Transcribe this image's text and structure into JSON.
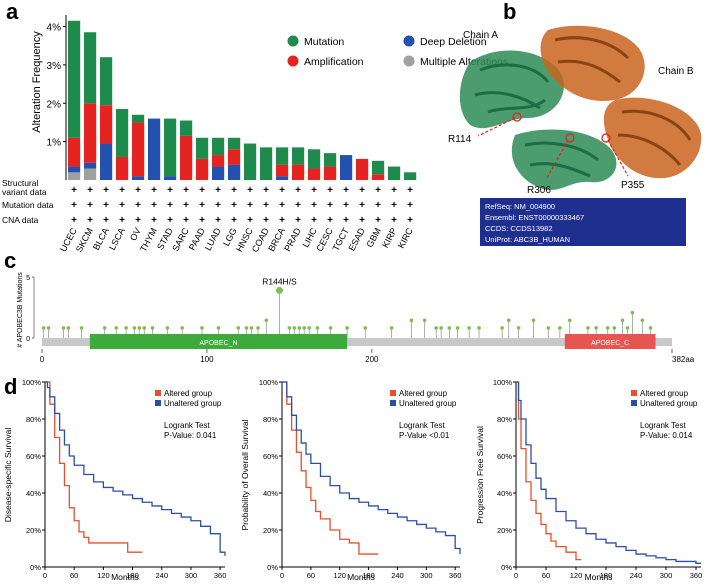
{
  "panels": {
    "a": "a",
    "b": "b",
    "c": "c",
    "d": "d"
  },
  "structure": {
    "chain_a": "Chain A",
    "chain_b": "Chain B",
    "residues": [
      "R114",
      "R306",
      "P355"
    ],
    "info": [
      "RefSeq: NM_004900",
      "Ensembl: ENST00000333467",
      "CCDS: CCDS13982",
      "UniProt: ABC3B_HUMAN"
    ],
    "colors": {
      "chain_a": "#2e8b57",
      "chain_b": "#c9641e",
      "box": "#1f2f8f"
    }
  },
  "chart_data": [
    {
      "type": "bar",
      "title": "",
      "ylabel": "Alteration Frequency",
      "ylim": [
        0,
        4.3
      ],
      "yticks": [
        "1%",
        "2%",
        "3%",
        "4%"
      ],
      "categories": [
        "UCEC",
        "SKCM",
        "BLCA",
        "LSCA",
        "OV",
        "THYM",
        "STAD",
        "SARC",
        "PAAD",
        "LUAD",
        "LGG",
        "HNSC",
        "COAD",
        "BRCA",
        "PRAD",
        "LIHC",
        "CESC",
        "TGCT",
        "ESAD",
        "GBM",
        "KIRP",
        "KIRC"
      ],
      "series": [
        {
          "name": "Multiple Alterations",
          "color": "#a0a0a0",
          "values": [
            0.2,
            0.3,
            0,
            0,
            0,
            0,
            0,
            0,
            0,
            0,
            0,
            0,
            0,
            0,
            0,
            0,
            0,
            0,
            0,
            0,
            0,
            0
          ]
        },
        {
          "name": "Deep Deletion",
          "color": "#2451b0",
          "values": [
            0.15,
            0.15,
            0.95,
            0,
            0.1,
            1.6,
            0.1,
            0,
            0,
            0.35,
            0.4,
            0,
            0,
            0.1,
            0,
            0,
            0,
            0.65,
            0,
            0,
            0,
            0
          ]
        },
        {
          "name": "Amplification",
          "color": "#e52321",
          "values": [
            0.75,
            1.55,
            1.0,
            0.6,
            1.4,
            0,
            0,
            1.15,
            0.55,
            0.3,
            0.4,
            0,
            0,
            0.3,
            0.4,
            0.3,
            0.35,
            0,
            0.55,
            0.15,
            0,
            0
          ]
        },
        {
          "name": "Mutation",
          "color": "#1e8a4c",
          "values": [
            3.05,
            1.85,
            1.25,
            1.25,
            0.2,
            0,
            1.5,
            0.4,
            0.55,
            0.45,
            0.3,
            0.95,
            0.85,
            0.45,
            0.45,
            0.5,
            0.35,
            0,
            0,
            0.35,
            0.35,
            0.2
          ]
        }
      ],
      "legend": [
        {
          "name": "Mutation",
          "color": "#1e8a4c"
        },
        {
          "name": "Deep Deletion",
          "color": "#2451b0"
        },
        {
          "name": "Amplification",
          "color": "#e52321"
        },
        {
          "name": "Multiple Alterations",
          "color": "#a0a0a0"
        }
      ],
      "row_labels": [
        "Structural variant data",
        "Mutation data",
        "CNA data"
      ],
      "row_labels_split": [
        [
          "Structural",
          "variant data"
        ],
        [
          "Mutation data"
        ],
        [
          "CNA data"
        ]
      ],
      "row_marker": "+"
    },
    {
      "type": "scatter",
      "ylabel": "# APOBEC3B Mutations",
      "ylim": [
        0,
        5
      ],
      "yticks": [
        "0",
        "5"
      ],
      "xlim": [
        0,
        382
      ],
      "xticks": [
        "0",
        "100",
        "200",
        "382aa"
      ],
      "xtick_values": [
        0,
        100,
        200,
        382
      ],
      "highlight": {
        "label": "R144H/S",
        "position": 144,
        "count": 3
      },
      "positions": [
        1,
        4,
        13,
        16,
        24,
        38,
        45,
        51,
        56,
        59,
        62,
        67,
        76,
        85,
        97,
        107,
        119,
        124,
        127,
        131,
        136,
        150,
        153,
        156,
        159,
        162,
        167,
        175,
        185,
        196,
        212,
        224,
        232,
        239,
        242,
        247,
        252,
        259,
        265,
        279,
        283,
        289,
        298,
        307,
        314,
        320,
        331,
        336,
        343,
        347,
        352,
        355,
        358,
        364,
        369
      ],
      "counts": [
        1,
        1,
        1,
        1,
        1,
        1,
        1,
        1,
        1,
        1,
        1,
        1,
        1,
        1,
        1,
        1,
        1,
        1,
        1,
        1,
        2,
        1,
        1,
        1,
        1,
        1,
        1,
        1,
        1,
        1,
        1,
        2,
        2,
        1,
        1,
        1,
        1,
        1,
        1,
        1,
        2,
        1,
        2,
        1,
        1,
        2,
        1,
        1,
        1,
        1,
        2,
        1,
        3,
        2,
        1
      ],
      "domains": [
        {
          "name": "APOBEC_N",
          "start": 29,
          "end": 185,
          "color": "#3daa3b"
        },
        {
          "name": "APOBEC_C",
          "start": 317,
          "end": 372,
          "color": "#e85450"
        }
      ]
    },
    {
      "type": "line",
      "ylabel": "Disease-specific Survival",
      "xlabel": "Months",
      "xlim": [
        0,
        370
      ],
      "ylim": [
        0,
        100
      ],
      "xticks": [
        "0",
        "60",
        "120",
        "180",
        "240",
        "300",
        "360"
      ],
      "xtick_values": [
        0,
        60,
        120,
        180,
        240,
        300,
        360
      ],
      "yticks": [
        "0%",
        "20%",
        "40%",
        "60%",
        "80%",
        "100%"
      ],
      "legend": [
        "Altered group",
        "Unaltered group"
      ],
      "stat_title": "Logrank Test",
      "p_value": "P-Value: 0.041",
      "series": [
        {
          "name": "Altered group",
          "color": "#e8502a",
          "x": [
            0,
            10,
            20,
            30,
            40,
            50,
            60,
            70,
            80,
            90,
            110,
            130,
            150,
            170,
            200
          ],
          "y": [
            100,
            88,
            70,
            56,
            44,
            32,
            25,
            19,
            16,
            13,
            13,
            13,
            13,
            8,
            8
          ]
        },
        {
          "name": "Unaltered group",
          "color": "#2b4fa8",
          "x": [
            0,
            5,
            10,
            20,
            30,
            40,
            50,
            60,
            80,
            100,
            120,
            140,
            160,
            180,
            200,
            220,
            240,
            260,
            280,
            300,
            320,
            340,
            360,
            370
          ],
          "y": [
            100,
            97,
            92,
            83,
            74,
            66,
            60,
            55,
            50,
            46,
            43,
            41,
            39,
            37,
            35,
            33,
            31,
            29,
            27,
            25,
            22,
            18,
            8,
            6
          ]
        }
      ]
    },
    {
      "type": "line",
      "ylabel": "Probability of Overall Survival",
      "xlabel": "Months",
      "xlim": [
        0,
        370
      ],
      "ylim": [
        0,
        100
      ],
      "xticks": [
        "0",
        "60",
        "120",
        "180",
        "240",
        "300",
        "360"
      ],
      "xtick_values": [
        0,
        60,
        120,
        180,
        240,
        300,
        360
      ],
      "yticks": [
        "0%",
        "20%",
        "40%",
        "60%",
        "80%",
        "100%"
      ],
      "legend": [
        "Altered group",
        "Unaltered group"
      ],
      "stat_title": "Logrank Test",
      "p_value": "P-Value <0.01",
      "series": [
        {
          "name": "Altered group",
          "color": "#e8502a",
          "x": [
            0,
            10,
            20,
            30,
            40,
            50,
            60,
            70,
            80,
            100,
            120,
            140,
            160,
            180,
            200
          ],
          "y": [
            100,
            88,
            74,
            62,
            52,
            43,
            36,
            30,
            26,
            20,
            15,
            13,
            7,
            7,
            7
          ]
        },
        {
          "name": "Unaltered group",
          "color": "#2b4fa8",
          "x": [
            0,
            10,
            20,
            30,
            40,
            50,
            60,
            80,
            100,
            120,
            140,
            160,
            180,
            200,
            220,
            240,
            260,
            280,
            300,
            320,
            340,
            360,
            370
          ],
          "y": [
            100,
            92,
            82,
            74,
            67,
            61,
            56,
            49,
            44,
            40,
            37,
            35,
            33,
            31,
            29,
            27,
            25,
            23,
            21,
            19,
            17,
            10,
            7
          ]
        }
      ]
    },
    {
      "type": "line",
      "ylabel": "Progression Free Survival",
      "xlabel": "Months",
      "xlim": [
        0,
        370
      ],
      "ylim": [
        0,
        100
      ],
      "xticks": [
        "0",
        "60",
        "120",
        "180",
        "240",
        "300",
        "360"
      ],
      "xtick_values": [
        0,
        60,
        120,
        180,
        240,
        300,
        360
      ],
      "yticks": [
        "0%",
        "20%",
        "40%",
        "60%",
        "80%",
        "100%"
      ],
      "legend": [
        "Altered group",
        "Unaltered group"
      ],
      "stat_title": "Logrank Test",
      "p_value": "P-Value: 0.014",
      "series": [
        {
          "name": "Altered group",
          "color": "#e8502a",
          "x": [
            0,
            5,
            10,
            20,
            30,
            40,
            50,
            60,
            70,
            80,
            100,
            120,
            130
          ],
          "y": [
            100,
            80,
            64,
            46,
            36,
            29,
            23,
            18,
            14,
            11,
            8,
            4,
            4
          ]
        },
        {
          "name": "Unaltered group",
          "color": "#2b4fa8",
          "x": [
            0,
            5,
            10,
            20,
            30,
            40,
            50,
            60,
            80,
            100,
            120,
            140,
            160,
            180,
            200,
            220,
            240,
            260,
            280,
            300,
            320,
            340,
            360,
            370
          ],
          "y": [
            100,
            90,
            80,
            66,
            56,
            48,
            42,
            37,
            30,
            25,
            21,
            18,
            15,
            13,
            11,
            9,
            7,
            6,
            5,
            4,
            3,
            3,
            2,
            2
          ]
        }
      ]
    }
  ]
}
